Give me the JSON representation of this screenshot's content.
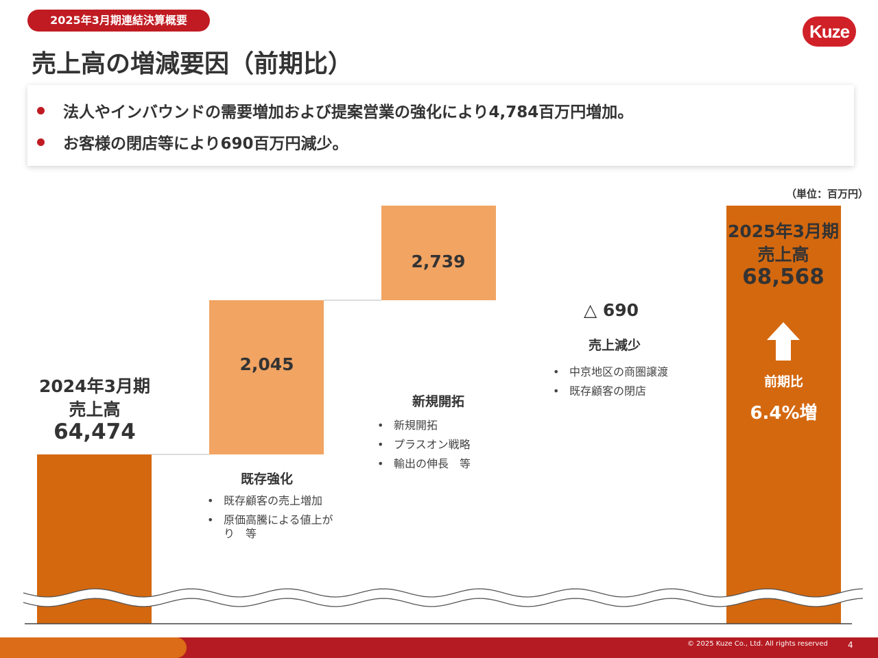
{
  "header": {
    "section_label": "2025年3月期連結決算概要",
    "title": "売上高の増減要因（前期比）",
    "logo_text": "Kuze"
  },
  "summary": {
    "points": [
      "法人やインバウンドの需要増加および提案営業の強化により4,784百万円増加。",
      "お客様の閉店等により690百万円減少。"
    ]
  },
  "unit_label": "（単位：百万円）",
  "chart_data": {
    "type": "bar",
    "subtype": "waterfall",
    "ylim": [
      60000,
      70000
    ],
    "axis_break": true,
    "colors": {
      "total": "#d4680f",
      "increase": "#f2a462",
      "decrease": "#7190c8",
      "connector": "#d0d0d0"
    },
    "start": {
      "period": "2024年3月期",
      "label": "売上高",
      "value": 64474,
      "value_label": "64,474"
    },
    "steps": [
      {
        "category": "既存強化",
        "value": 2045,
        "value_label": "2,045",
        "bullets": [
          "既存顧客の売上増加",
          "原価高騰による値上がり　等"
        ]
      },
      {
        "category": "新規開拓",
        "value": 2739,
        "value_label": "2,739",
        "bullets": [
          "新規開拓",
          "プラスオン戦略",
          "輸出の伸長　等"
        ]
      },
      {
        "category": "売上減少",
        "value": -690,
        "value_label": "△ 690",
        "bullets": [
          "中京地区の商圏譲渡",
          "既存顧客の閉店"
        ]
      }
    ],
    "end": {
      "period": "2025年3月期",
      "label": "売上高",
      "value": 68568,
      "value_label": "68,568",
      "growth_label": "前期比",
      "growth_value": "6.4%増"
    }
  },
  "footer": {
    "copyright": "© 2025 Kuze Co., Ltd. All rights reserved",
    "page_number": "4"
  }
}
